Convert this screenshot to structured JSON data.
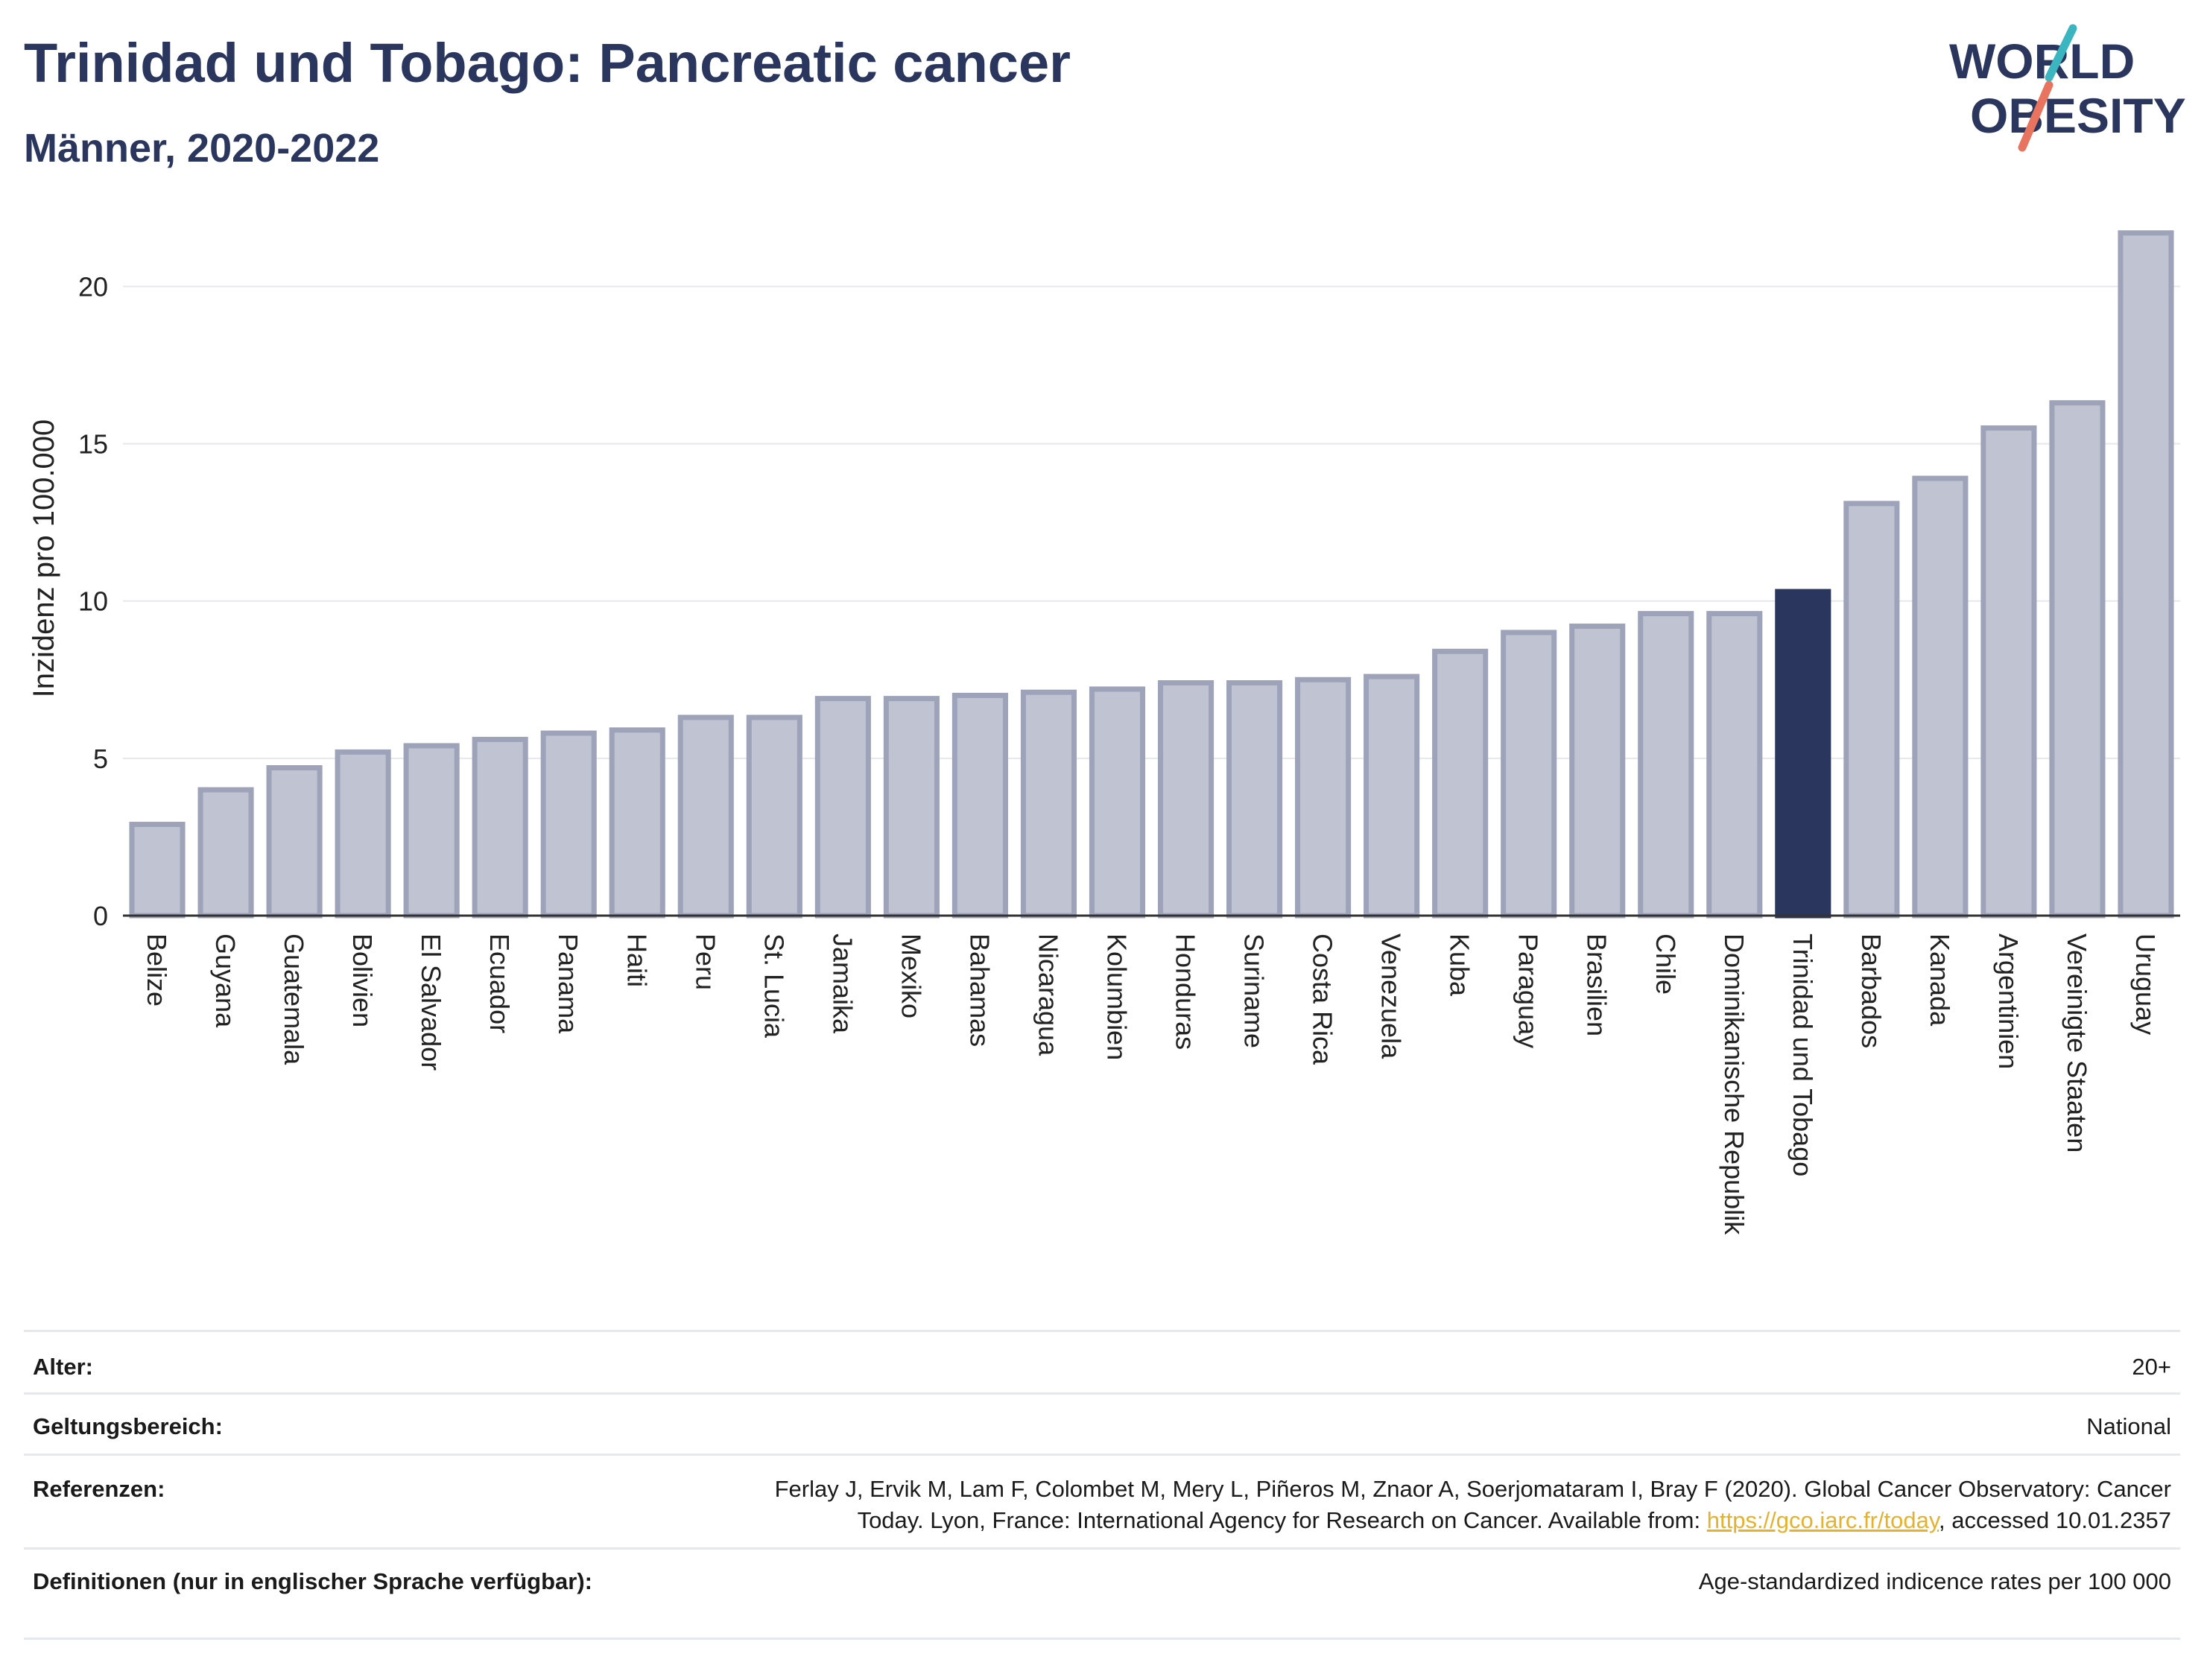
{
  "header": {
    "title": "Trinidad und Tobago: Pancreatic cancer",
    "subtitle": "Männer, 2020-2022"
  },
  "logo": {
    "line1": "WORLD",
    "line2": "OBESITY",
    "text_color": "#2b365e",
    "accent_teal": "#3bb5c0",
    "accent_coral": "#e8735f"
  },
  "chart_data": {
    "type": "bar",
    "ylabel": "Inzidenz pro 100.000",
    "ylim": [
      0,
      22
    ],
    "yticks": [
      0,
      5,
      10,
      15,
      20
    ],
    "grid": true,
    "highlight": "Trinidad und Tobago",
    "colors": {
      "bar": "#c0c3d1",
      "bar_border": "#9ea3ba",
      "highlight": "#2b365e"
    },
    "categories": [
      "Belize",
      "Guyana",
      "Guatemala",
      "Bolivien",
      "El Salvador",
      "Ecuador",
      "Panama",
      "Haiti",
      "Peru",
      "St. Lucia",
      "Jamaika",
      "Mexiko",
      "Bahamas",
      "Nicaragua",
      "Kolumbien",
      "Honduras",
      "Suriname",
      "Costa Rica",
      "Venezuela",
      "Kuba",
      "Paraguay",
      "Brasilien",
      "Chile",
      "Dominikanische Republik",
      "Trinidad und Tobago",
      "Barbados",
      "Kanada",
      "Argentinien",
      "Vereinigte Staaten",
      "Uruguay"
    ],
    "values": [
      2.9,
      4.0,
      4.7,
      5.2,
      5.4,
      5.6,
      5.8,
      5.9,
      6.3,
      6.3,
      6.9,
      6.9,
      7.0,
      7.1,
      7.2,
      7.4,
      7.4,
      7.5,
      7.6,
      8.4,
      9.0,
      9.2,
      9.6,
      9.6,
      10.3,
      13.1,
      13.9,
      15.5,
      16.3,
      21.7
    ]
  },
  "meta": {
    "age_label": "Alter:",
    "age_value": "20+",
    "scope_label": "Geltungsbereich:",
    "scope_value": "National",
    "refs_label": "Referenzen:",
    "refs_line1": "Ferlay J, Ervik M, Lam F, Colombet M, Mery L, Piñeros M, Znaor A, Soerjomataram I, Bray F (2020). Global Cancer Observatory: Cancer",
    "refs_line2_pre": "Today. Lyon, France: International Agency for Research on Cancer. Available from: ",
    "refs_link": "https://gco.iarc.fr/today",
    "refs_line2_post": ", accessed 10.01.2357",
    "defs_label": "Definitionen (nur in englischer Sprache verfügbar):",
    "defs_value": "Age-standardized indicence rates per 100 000"
  }
}
